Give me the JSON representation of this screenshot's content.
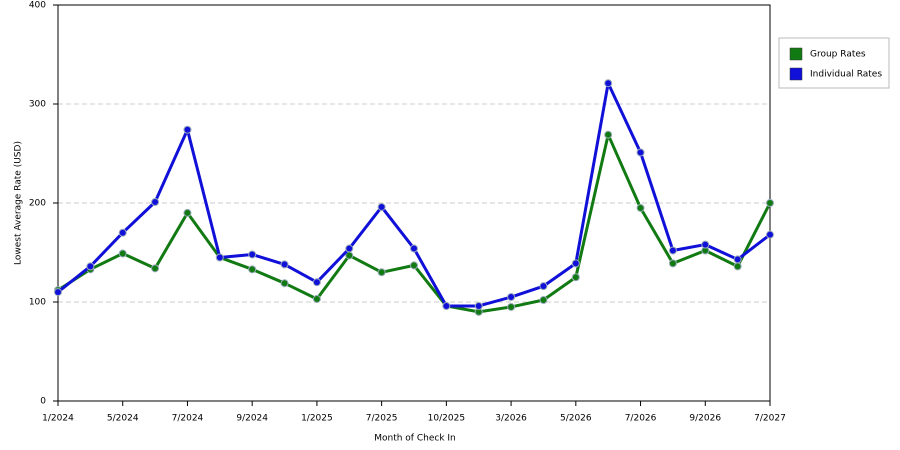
{
  "chart_data": {
    "type": "line",
    "x_label": "Month of Check In",
    "y_label": "Lowest Average Rate (USD)",
    "categories": [
      "1/2024",
      null,
      "5/2024",
      null,
      "7/2024",
      null,
      "9/2024",
      null,
      "1/2025",
      null,
      "7/2025",
      null,
      "10/2025",
      null,
      "3/2026",
      null,
      "5/2026",
      null,
      "7/2026",
      null,
      "9/2026",
      null,
      "7/2027"
    ],
    "series": [
      {
        "name": "Group Rates",
        "color": "#127a12",
        "values": [
          112,
          133,
          149,
          134,
          190,
          145,
          133,
          119,
          103,
          147,
          130,
          137,
          96,
          90,
          95,
          102,
          125,
          269,
          195,
          139,
          152,
          136,
          200
        ]
      },
      {
        "name": "Individual Rates",
        "color": "#1010d8",
        "values": [
          110,
          136,
          170,
          201,
          274,
          145,
          148,
          138,
          120,
          154,
          196,
          154,
          96,
          96,
          105,
          116,
          139,
          321,
          251,
          152,
          158,
          143,
          168
        ]
      }
    ],
    "ylim": [
      0,
      400
    ],
    "yticks": [
      0,
      100,
      200,
      300,
      400
    ],
    "grid": true
  }
}
